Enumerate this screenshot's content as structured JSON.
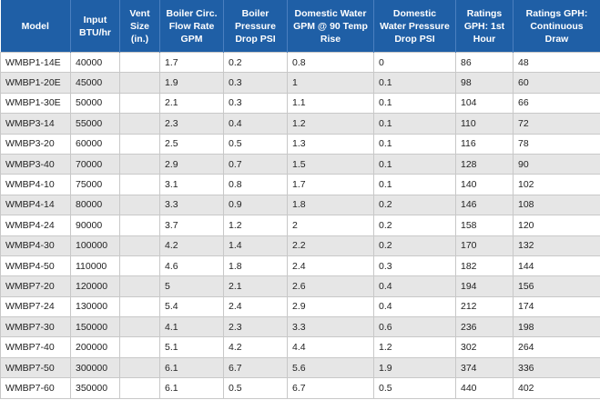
{
  "table": {
    "header": [
      "Model",
      "Input BTU/hr",
      "Vent Size (in.)",
      "Boiler Circ. Flow Rate GPM",
      "Boiler Pressure Drop PSI",
      "Domestic Water GPM @ 90 Temp Rise",
      "Domestic Water Pressure Drop PSI",
      "Ratings GPH: 1st Hour",
      "Ratings GPH: Continuous Draw"
    ],
    "rows": [
      [
        "WMBP1-14E",
        "40000",
        null,
        "1.7",
        "0.2",
        "0.8",
        "0",
        "86",
        "48"
      ],
      [
        "WMBP1-20E",
        "45000",
        null,
        "1.9",
        "0.3",
        "1",
        "0.1",
        "98",
        "60"
      ],
      [
        "WMBP1-30E",
        "50000",
        null,
        "2.1",
        "0.3",
        "1.1",
        "0.1",
        "104",
        "66"
      ],
      [
        "WMBP3-14",
        "55000",
        null,
        "2.3",
        "0.4",
        "1.2",
        "0.1",
        "110",
        "72"
      ],
      [
        "WMBP3-20",
        "60000",
        null,
        "2.5",
        "0.5",
        "1.3",
        "0.1",
        "116",
        "78"
      ],
      [
        "WMBP3-40",
        "70000",
        null,
        "2.9",
        "0.7",
        "1.5",
        "0.1",
        "128",
        "90"
      ],
      [
        "WMBP4-10",
        "75000",
        null,
        "3.1",
        "0.8",
        "1.7",
        "0.1",
        "140",
        "102"
      ],
      [
        "WMBP4-14",
        "80000",
        null,
        "3.3",
        "0.9",
        "1.8",
        "0.2",
        "146",
        "108"
      ],
      [
        "WMBP4-24",
        "90000",
        null,
        "3.7",
        "1.2",
        "2",
        "0.2",
        "158",
        "120"
      ],
      [
        "WMBP4-30",
        "100000",
        null,
        "4.2",
        "1.4",
        "2.2",
        "0.2",
        "170",
        "132"
      ],
      [
        "WMBP4-50",
        "110000",
        null,
        "4.6",
        "1.8",
        "2.4",
        "0.3",
        "182",
        "144"
      ],
      [
        "WMBP7-20",
        "120000",
        null,
        "5",
        "2.1",
        "2.6",
        "0.4",
        "194",
        "156"
      ],
      [
        "WMBP7-24",
        "130000",
        null,
        "5.4",
        "2.4",
        "2.9",
        "0.4",
        "212",
        "174"
      ],
      [
        "WMBP7-30",
        "150000",
        null,
        "4.1",
        "2.3",
        "3.3",
        "0.6",
        "236",
        "198"
      ],
      [
        "WMBP7-40",
        "200000",
        null,
        "5.1",
        "4.2",
        "4.4",
        "1.2",
        "302",
        "264"
      ],
      [
        "WMBP7-50",
        "300000",
        null,
        "6.1",
        "6.7",
        "5.6",
        "1.9",
        "374",
        "336"
      ],
      [
        "WMBP7-60",
        "350000",
        null,
        "6.1",
        "0.5",
        "6.7",
        "0.5",
        "440",
        "402"
      ]
    ]
  }
}
